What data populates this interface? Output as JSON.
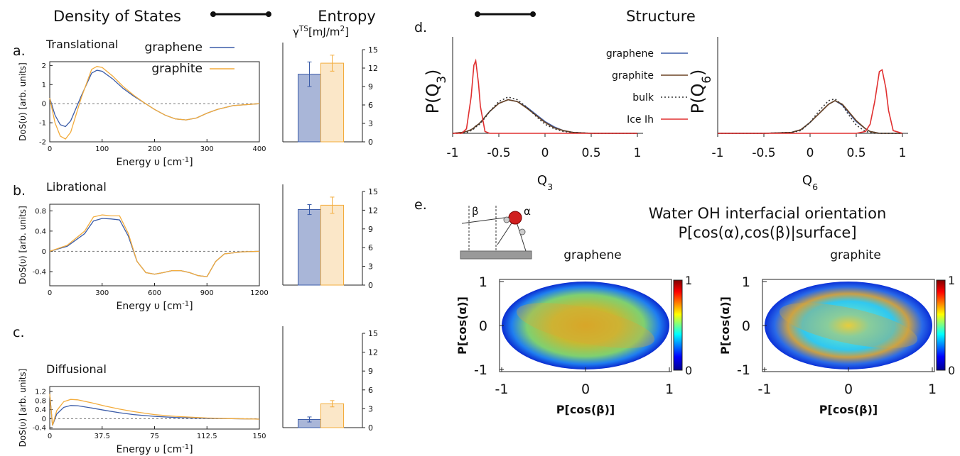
{
  "headers": {
    "dos": "Density of States",
    "entropy": "Entropy",
    "structure": "Structure"
  },
  "panel_e": {
    "panel": "e.",
    "title": "Water OH interfacial orientation",
    "subtitle": "P[cos(α),cos(β)|surface]",
    "inset": [
      "β",
      "α"
    ]
  },
  "chart_data": [
    {
      "type": "line",
      "panel": "a.",
      "title": "Translational",
      "xlabel": [
        "Energy υ [cm",
        "-1",
        "]"
      ],
      "ylabel": [
        "DoS(υ) [arb. units]"
      ],
      "script": "super",
      "x": [
        0,
        10,
        20,
        30,
        40,
        60,
        80,
        90,
        100,
        120,
        140,
        160,
        180,
        200,
        220,
        240,
        260,
        280,
        300,
        320,
        350,
        400
      ],
      "series": [
        {
          "name": "graphene",
          "color": "#3b5ca8",
          "values": [
            0.3,
            -0.6,
            -1.1,
            -1.2,
            -0.9,
            0.4,
            1.6,
            1.75,
            1.7,
            1.3,
            0.8,
            0.4,
            0.05,
            -0.3,
            -0.6,
            -0.8,
            -0.85,
            -0.75,
            -0.5,
            -0.3,
            -0.1,
            0
          ]
        },
        {
          "name": "graphite",
          "color": "#f3ac3c",
          "values": [
            0.3,
            -1.0,
            -1.7,
            -1.85,
            -1.5,
            0.3,
            1.8,
            1.95,
            1.9,
            1.45,
            0.9,
            0.45,
            0.05,
            -0.3,
            -0.6,
            -0.8,
            -0.85,
            -0.75,
            -0.5,
            -0.3,
            -0.1,
            0
          ]
        }
      ],
      "xlim": [
        0,
        400
      ],
      "ylim": [
        -2,
        2.2
      ],
      "xticks": [
        0,
        100,
        200,
        300,
        400
      ],
      "yticks": [
        -2,
        -1,
        0,
        1,
        2
      ],
      "zero_line": true,
      "legend": true
    },
    {
      "type": "bar",
      "ylabel": [
        "γ",
        "TS",
        "[mJ/m",
        "2",
        "]"
      ],
      "script": "super",
      "categories": [
        null,
        null
      ],
      "values": [
        11,
        12.8
      ],
      "errors": [
        2,
        1.3
      ],
      "colors": [
        "#3b5ca8",
        "#f3ac3c"
      ],
      "fills": [
        "#a9b6d8",
        "#fbe7c8"
      ],
      "ylim": [
        0,
        15
      ],
      "yticks": [
        0,
        3,
        6,
        9,
        12,
        15
      ]
    },
    {
      "type": "line",
      "panel": "b.",
      "title": "Librational",
      "xlabel": [
        "Energy υ [cm",
        "-1",
        "]"
      ],
      "ylabel": [
        "DoS(υ) [arb. units]"
      ],
      "script": "super",
      "x": [
        0,
        100,
        200,
        250,
        300,
        350,
        400,
        450,
        500,
        550,
        600,
        650,
        700,
        750,
        800,
        850,
        900,
        950,
        1000,
        1100,
        1200
      ],
      "series": [
        {
          "color": "#3b5ca8",
          "values": [
            0,
            0.1,
            0.35,
            0.6,
            0.65,
            0.64,
            0.62,
            0.3,
            -0.2,
            -0.42,
            -0.45,
            -0.42,
            -0.38,
            -0.38,
            -0.42,
            -0.48,
            -0.5,
            -0.2,
            -0.05,
            -0.01,
            0
          ]
        },
        {
          "color": "#f3ac3c",
          "values": [
            0,
            0.12,
            0.4,
            0.68,
            0.72,
            0.7,
            0.7,
            0.35,
            -0.2,
            -0.42,
            -0.45,
            -0.42,
            -0.38,
            -0.38,
            -0.42,
            -0.48,
            -0.5,
            -0.2,
            -0.05,
            -0.01,
            0
          ]
        }
      ],
      "xlim": [
        0,
        1200
      ],
      "ylim": [
        -0.68,
        0.93
      ],
      "xticks": [
        0,
        300,
        600,
        900,
        1200
      ],
      "yticks": [
        -0.4,
        0,
        0.4,
        0.8
      ],
      "zero_line": true
    },
    {
      "type": "bar",
      "categories": [
        null,
        null
      ],
      "values": [
        12.1,
        12.8
      ],
      "errors": [
        0.8,
        1.3
      ],
      "colors": [
        "#3b5ca8",
        "#f3ac3c"
      ],
      "fills": [
        "#a9b6d8",
        "#fbe7c8"
      ],
      "ylim": [
        0,
        15
      ],
      "yticks": [
        0,
        3,
        6,
        9,
        12,
        15
      ]
    },
    {
      "type": "line",
      "panel": "c.",
      "title": "Diffusional",
      "xlabel": [
        "Energy υ [cm",
        "-1",
        "]"
      ],
      "ylabel": [
        "DoS(υ) [arb. units]"
      ],
      "script": "super",
      "x": [
        0,
        2,
        5,
        10,
        15,
        20,
        30,
        40,
        50,
        60,
        75,
        90,
        112.5,
        130,
        150
      ],
      "series": [
        {
          "color": "#3b5ca8",
          "values": [
            1.1,
            -0.3,
            0.2,
            0.5,
            0.58,
            0.57,
            0.47,
            0.36,
            0.26,
            0.18,
            0.1,
            0.05,
            0.01,
            0,
            -0.02
          ]
        },
        {
          "color": "#f3ac3c",
          "values": [
            1.1,
            -0.3,
            0.35,
            0.75,
            0.85,
            0.83,
            0.7,
            0.55,
            0.42,
            0.31,
            0.18,
            0.1,
            0.03,
            0,
            -0.02
          ]
        }
      ],
      "xlim": [
        0,
        150
      ],
      "ylim": [
        -0.46,
        1.42
      ],
      "xticks": [
        0,
        37.5,
        75,
        112.5,
        150
      ],
      "yticks": [
        -0.4,
        0,
        0.4,
        0.8,
        1.2
      ],
      "zero_line": true
    },
    {
      "type": "bar",
      "categories": [
        null,
        null
      ],
      "values": [
        1.3,
        3.8
      ],
      "errors": [
        0.4,
        0.5
      ],
      "colors": [
        "#3b5ca8",
        "#f3ac3c"
      ],
      "fills": [
        "#a9b6d8",
        "#fbe7c8"
      ],
      "ylim": [
        0,
        15
      ],
      "yticks": [
        0,
        3,
        6,
        9,
        12,
        15
      ]
    },
    {
      "type": "line",
      "panel": "d.",
      "xlabel": [
        "Q",
        "3"
      ],
      "ylabel": [
        "P(Q",
        "3",
        ")"
      ],
      "script": "sub",
      "x": [
        -1,
        -0.9,
        -0.85,
        -0.8,
        -0.77,
        -0.75,
        -0.72,
        -0.7,
        -0.65,
        -0.6,
        -0.5,
        -0.4,
        -0.3,
        -0.2,
        -0.1,
        0,
        0.1,
        0.2,
        0.3,
        0.5,
        1
      ],
      "series": [
        {
          "name": "graphene",
          "color": "#3b5ca8",
          "values": [
            0,
            0.01,
            0.02,
            0.04,
            0.06,
            0.08,
            0.1,
            0.12,
            0.18,
            0.24,
            0.33,
            0.37,
            0.35,
            0.29,
            0.21,
            0.13,
            0.07,
            0.03,
            0.01,
            0,
            0
          ]
        },
        {
          "name": "graphite",
          "color": "#6b4423",
          "values": [
            0,
            0.01,
            0.02,
            0.04,
            0.06,
            0.08,
            0.1,
            0.12,
            0.18,
            0.24,
            0.33,
            0.37,
            0.35,
            0.28,
            0.2,
            0.12,
            0.06,
            0.03,
            0.01,
            0,
            0
          ]
        },
        {
          "name": "bulk",
          "color": "#333333",
          "style": "dotted",
          "values": [
            0,
            0,
            0.01,
            0.03,
            0.05,
            0.07,
            0.09,
            0.11,
            0.17,
            0.24,
            0.35,
            0.4,
            0.37,
            0.29,
            0.19,
            0.1,
            0.05,
            0.02,
            0.01,
            0,
            0
          ]
        },
        {
          "name": "Ice Ih",
          "color": "#e03030",
          "values": [
            0,
            0,
            0.05,
            0.4,
            0.75,
            0.8,
            0.55,
            0.3,
            0.02,
            0,
            0,
            0,
            0,
            0,
            0,
            0,
            0,
            0,
            0,
            0,
            0
          ]
        }
      ],
      "xlim": [
        -1,
        1
      ],
      "ylim": [
        0,
        1
      ],
      "xticks": [
        -1,
        -0.5,
        0,
        0.5,
        1
      ],
      "legend": true
    },
    {
      "type": "line",
      "xlabel": [
        "Q",
        "6"
      ],
      "ylabel": [
        "P(Q",
        "6",
        ")"
      ],
      "script": "sub",
      "x": [
        -1,
        -0.5,
        -0.2,
        -0.1,
        0,
        0.1,
        0.2,
        0.27,
        0.35,
        0.4,
        0.5,
        0.6,
        0.65,
        0.7,
        0.75,
        0.78,
        0.82,
        0.85,
        0.9,
        1
      ],
      "series": [
        {
          "color": "#3b5ca8",
          "values": [
            0,
            0,
            0.01,
            0.04,
            0.12,
            0.22,
            0.32,
            0.36,
            0.31,
            0.25,
            0.13,
            0.05,
            0.02,
            0.01,
            0,
            0,
            0,
            0,
            0,
            0
          ]
        },
        {
          "color": "#6b4423",
          "values": [
            0,
            0,
            0.01,
            0.04,
            0.12,
            0.22,
            0.32,
            0.36,
            0.32,
            0.26,
            0.14,
            0.05,
            0.02,
            0.01,
            0,
            0,
            0,
            0,
            0,
            0
          ]
        },
        {
          "color": "#333333",
          "style": "dotted",
          "values": [
            0,
            0,
            0.01,
            0.03,
            0.12,
            0.25,
            0.36,
            0.38,
            0.31,
            0.23,
            0.09,
            0.02,
            0.01,
            0,
            0,
            0,
            0,
            0,
            0,
            0
          ]
        },
        {
          "color": "#e03030",
          "values": [
            0,
            0,
            0,
            0,
            0,
            0,
            0,
            0,
            0,
            0,
            0,
            0.02,
            0.1,
            0.35,
            0.68,
            0.7,
            0.5,
            0.25,
            0.03,
            0
          ]
        }
      ],
      "xlim": [
        -1,
        1
      ],
      "ylim": [
        0,
        1
      ],
      "xticks": [
        -1,
        -0.5,
        0,
        0.5,
        1
      ]
    },
    {
      "type": "heatmap",
      "title": "graphene",
      "xlabel": [
        "P[cos(β)]"
      ],
      "ylabel": [
        "P[cos(α)]"
      ],
      "xlim": [
        -1,
        1
      ],
      "ylim": [
        -1,
        1
      ],
      "xticks": [
        -1,
        0,
        1
      ],
      "yticks": [
        -1,
        0,
        1
      ],
      "colorbar_lim": [
        0,
        1
      ],
      "colorbar_ticks": [
        0,
        1
      ]
    },
    {
      "type": "heatmap",
      "title": "graphite",
      "xlabel": [
        "P[cos(β)]"
      ],
      "ylabel": [
        "P[cos(α)]"
      ],
      "xlim": [
        -1,
        1
      ],
      "ylim": [
        -1,
        1
      ],
      "xticks": [
        -1,
        0,
        1
      ],
      "yticks": [
        -1,
        0,
        1
      ],
      "colorbar_lim": [
        0,
        1
      ],
      "colorbar_ticks": [
        0,
        1
      ]
    }
  ]
}
